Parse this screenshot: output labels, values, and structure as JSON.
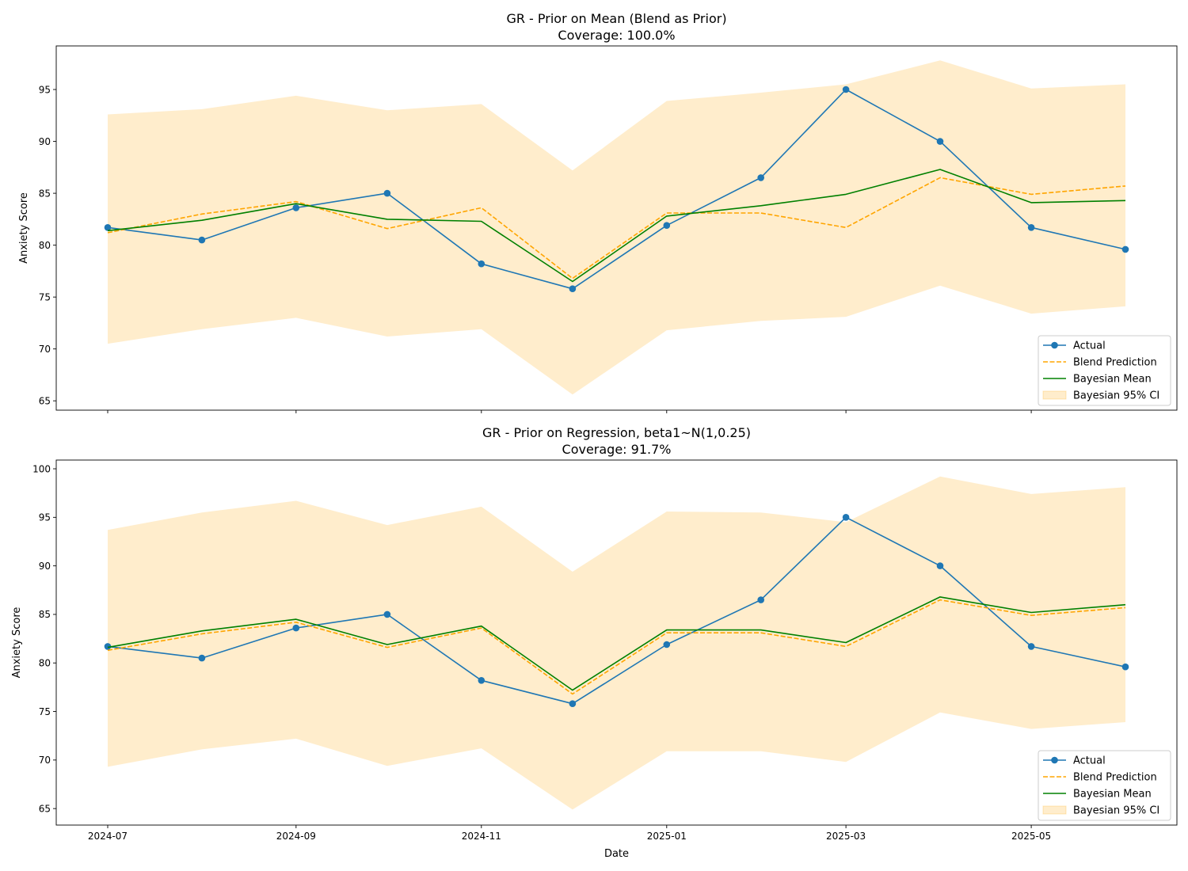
{
  "colors": {
    "actual": "#1f77b4",
    "blend": "#ffa500",
    "bayes": "#008000",
    "ci": "#ffa500"
  },
  "chart_data": [
    {
      "type": "line",
      "title": "GR - Prior on Mean (Blend as Prior)",
      "subtitle": "Coverage: 100.0%",
      "xlabel": "",
      "ylabel": "Anxiety Score",
      "x": [
        "2024-07-01",
        "2024-08-01",
        "2024-09-01",
        "2024-10-01",
        "2024-11-01",
        "2024-12-01",
        "2025-01-01",
        "2025-02-01",
        "2025-03-01",
        "2025-04-01",
        "2025-05-01",
        "2025-06-01"
      ],
      "xticks": [
        "2024-07",
        "2024-09",
        "2024-11",
        "2025-01",
        "2025-03",
        "2025-05"
      ],
      "ylim": [
        64.1,
        99.2
      ],
      "yticks": [
        65,
        70,
        75,
        80,
        85,
        90,
        95
      ],
      "grid": false,
      "legend_position": "lower-right",
      "show_xtick_labels": false,
      "series": [
        {
          "name": "Actual",
          "kind": "line-marker",
          "values": [
            81.7,
            80.5,
            83.6,
            85.0,
            78.2,
            75.8,
            81.9,
            86.5,
            95.0,
            90.0,
            81.7,
            79.6
          ]
        },
        {
          "name": "Blend Prediction",
          "kind": "dashed",
          "values": [
            81.2,
            83.0,
            84.2,
            81.6,
            83.6,
            76.8,
            83.1,
            83.1,
            81.7,
            86.5,
            84.9,
            85.7
          ]
        },
        {
          "name": "Bayesian Mean",
          "kind": "solid",
          "values": [
            81.4,
            82.4,
            84.0,
            82.5,
            82.3,
            76.5,
            82.8,
            83.8,
            84.9,
            87.3,
            84.1,
            84.3
          ]
        },
        {
          "name": "Bayesian 95% CI",
          "kind": "band",
          "lower": [
            70.5,
            71.9,
            73.0,
            71.2,
            71.9,
            65.6,
            71.8,
            72.7,
            73.1,
            76.1,
            73.4,
            74.1
          ],
          "upper": [
            92.6,
            93.1,
            94.4,
            93.0,
            93.6,
            87.2,
            93.9,
            94.7,
            95.5,
            97.8,
            95.1,
            95.5
          ]
        }
      ]
    },
    {
      "type": "line",
      "title": "GR - Prior on Regression, beta1~N(1,0.25)",
      "subtitle": "Coverage: 91.7%",
      "xlabel": "Date",
      "ylabel": "Anxiety Score",
      "x": [
        "2024-07-01",
        "2024-08-01",
        "2024-09-01",
        "2024-10-01",
        "2024-11-01",
        "2024-12-01",
        "2025-01-01",
        "2025-02-01",
        "2025-03-01",
        "2025-04-01",
        "2025-05-01",
        "2025-06-01"
      ],
      "xticks": [
        "2024-07",
        "2024-09",
        "2024-11",
        "2025-01",
        "2025-03",
        "2025-05"
      ],
      "ylim": [
        63.3,
        100.9
      ],
      "yticks": [
        65,
        70,
        75,
        80,
        85,
        90,
        95,
        100
      ],
      "grid": false,
      "legend_position": "lower-right",
      "show_xtick_labels": true,
      "series": [
        {
          "name": "Actual",
          "kind": "line-marker",
          "values": [
            81.7,
            80.5,
            83.6,
            85.0,
            78.2,
            75.8,
            81.9,
            86.5,
            95.0,
            90.0,
            81.7,
            79.6
          ]
        },
        {
          "name": "Blend Prediction",
          "kind": "dashed",
          "values": [
            81.3,
            83.0,
            84.2,
            81.6,
            83.6,
            76.8,
            83.1,
            83.1,
            81.7,
            86.5,
            84.9,
            85.7
          ]
        },
        {
          "name": "Bayesian Mean",
          "kind": "solid",
          "values": [
            81.6,
            83.3,
            84.5,
            81.9,
            83.8,
            77.2,
            83.4,
            83.4,
            82.1,
            86.8,
            85.2,
            86.0
          ]
        },
        {
          "name": "Bayesian 95% CI",
          "kind": "band",
          "lower": [
            69.3,
            71.1,
            72.2,
            69.4,
            71.2,
            64.9,
            70.9,
            70.9,
            69.8,
            74.9,
            73.2,
            73.9
          ],
          "upper": [
            93.7,
            95.5,
            96.7,
            94.2,
            96.1,
            89.4,
            95.6,
            95.5,
            94.5,
            99.2,
            97.4,
            98.1
          ]
        }
      ]
    }
  ]
}
